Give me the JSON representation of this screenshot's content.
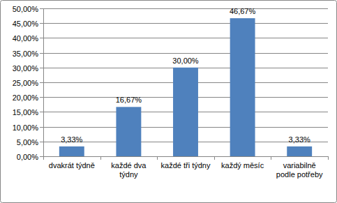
{
  "chart_data": {
    "type": "bar",
    "categories": [
      "dvakrát týdně",
      "každé dva týdny",
      "každé tři týdny",
      "každý měsíc",
      "variabilně podle potřeby"
    ],
    "values": [
      3.33,
      16.67,
      30.0,
      46.67,
      3.33
    ],
    "value_labels": [
      "3,33%",
      "16,67%",
      "30,00%",
      "46,67%",
      "3,33%"
    ],
    "color": "#4f81bd",
    "ylim": [
      0,
      50
    ],
    "yticks": [
      {
        "value": 0,
        "label": "0,00%"
      },
      {
        "value": 5,
        "label": "5,00%"
      },
      {
        "value": 10,
        "label": "10,00%"
      },
      {
        "value": 15,
        "label": "15,00%"
      },
      {
        "value": 20,
        "label": "20,00%"
      },
      {
        "value": 25,
        "label": "25,00%"
      },
      {
        "value": 30,
        "label": "30,00%"
      },
      {
        "value": 35,
        "label": "35,00%"
      },
      {
        "value": 40,
        "label": "40,00%"
      },
      {
        "value": 45,
        "label": "45,00%"
      },
      {
        "value": 50,
        "label": "50,00%"
      }
    ],
    "grid": true,
    "data_labels": true
  }
}
